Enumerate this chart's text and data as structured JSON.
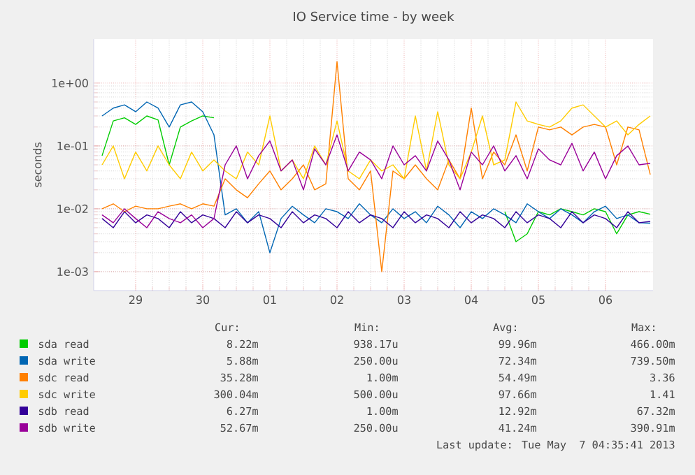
{
  "chart_data": {
    "type": "line",
    "title": "IO Service time - by week",
    "ylabel": "seconds",
    "log": "y",
    "grid": true,
    "legend": "bottom",
    "xlim": [
      "2013-04-28T09:00",
      "2013-05-06T17:00"
    ],
    "xticks": [
      {
        "value": "2013-04-29",
        "label": "29"
      },
      {
        "value": "2013-04-30",
        "label": "30"
      },
      {
        "value": "2013-05-01",
        "label": "01"
      },
      {
        "value": "2013-05-02",
        "label": "02"
      },
      {
        "value": "2013-05-03",
        "label": "03"
      },
      {
        "value": "2013-05-04",
        "label": "04"
      },
      {
        "value": "2013-05-05",
        "label": "05"
      },
      {
        "value": "2013-05-06",
        "label": "06"
      }
    ],
    "ylim": [
      0.0005,
      5
    ],
    "yticks": [
      {
        "value": 0.001,
        "label": "1e-03"
      },
      {
        "value": 0.01,
        "label": "1e-02"
      },
      {
        "value": 0.1,
        "label": "1e-01"
      },
      {
        "value": 1,
        "label": "1e+00"
      }
    ],
    "x": [
      "2013-04-28T12:00",
      "2013-04-28T16:00",
      "2013-04-28T20:00",
      "2013-04-29T00:00",
      "2013-04-29T04:00",
      "2013-04-29T08:00",
      "2013-04-29T12:00",
      "2013-04-29T16:00",
      "2013-04-29T20:00",
      "2013-04-30T00:00",
      "2013-04-30T04:00",
      "2013-04-30T08:00",
      "2013-04-30T12:00",
      "2013-04-30T16:00",
      "2013-04-30T20:00",
      "2013-05-01T00:00",
      "2013-05-01T04:00",
      "2013-05-01T08:00",
      "2013-05-01T12:00",
      "2013-05-01T16:00",
      "2013-05-01T20:00",
      "2013-05-02T00:00",
      "2013-05-02T04:00",
      "2013-05-02T08:00",
      "2013-05-02T12:00",
      "2013-05-02T16:00",
      "2013-05-02T20:00",
      "2013-05-03T00:00",
      "2013-05-03T04:00",
      "2013-05-03T08:00",
      "2013-05-03T12:00",
      "2013-05-03T16:00",
      "2013-05-03T20:00",
      "2013-05-04T00:00",
      "2013-05-04T04:00",
      "2013-05-04T08:00",
      "2013-05-04T12:00",
      "2013-05-04T16:00",
      "2013-05-04T20:00",
      "2013-05-05T00:00",
      "2013-05-05T04:00",
      "2013-05-05T08:00",
      "2013-05-05T12:00",
      "2013-05-05T16:00",
      "2013-05-05T20:00",
      "2013-05-06T00:00",
      "2013-05-06T04:00",
      "2013-05-06T08:00",
      "2013-05-06T12:00",
      "2013-05-06T16:00"
    ],
    "series": [
      {
        "name": "sda read",
        "color": "#00cc00",
        "values": [
          0.07,
          0.25,
          0.28,
          0.22,
          0.3,
          0.26,
          0.05,
          0.2,
          0.25,
          0.3,
          0.28,
          null,
          null,
          null,
          null,
          null,
          null,
          null,
          null,
          null,
          null,
          null,
          null,
          null,
          null,
          null,
          null,
          null,
          null,
          null,
          null,
          null,
          null,
          null,
          null,
          null,
          0.009,
          0.003,
          0.004,
          0.009,
          0.008,
          0.01,
          0.009,
          0.008,
          0.01,
          0.009,
          0.004,
          0.008,
          0.009,
          0.0082
        ]
      },
      {
        "name": "sda write",
        "color": "#0066b3",
        "values": [
          0.3,
          0.4,
          0.45,
          0.35,
          0.5,
          0.4,
          0.2,
          0.45,
          0.5,
          0.35,
          0.15,
          0.008,
          0.01,
          0.006,
          0.009,
          0.002,
          0.007,
          0.011,
          0.008,
          0.006,
          0.01,
          0.009,
          0.007,
          0.012,
          0.008,
          0.006,
          0.01,
          0.007,
          0.009,
          0.006,
          0.011,
          0.008,
          0.005,
          0.009,
          0.007,
          0.01,
          0.008,
          0.006,
          0.012,
          0.009,
          0.007,
          0.01,
          0.008,
          0.006,
          0.009,
          0.011,
          0.007,
          0.008,
          0.006,
          0.0059
        ]
      },
      {
        "name": "sdc read",
        "color": "#ff8000",
        "values": [
          0.01,
          0.012,
          0.009,
          0.011,
          0.01,
          0.01,
          0.011,
          0.012,
          0.01,
          0.012,
          0.011,
          0.03,
          0.02,
          0.015,
          0.025,
          0.04,
          0.02,
          0.03,
          0.05,
          0.02,
          0.025,
          2.2,
          0.03,
          0.02,
          0.04,
          0.001,
          0.04,
          0.03,
          0.05,
          0.03,
          0.02,
          0.06,
          0.03,
          0.4,
          0.03,
          0.08,
          0.05,
          0.15,
          0.04,
          0.2,
          0.18,
          0.2,
          0.15,
          0.2,
          0.22,
          0.2,
          0.05,
          0.2,
          0.18,
          0.035
        ]
      },
      {
        "name": "sdc write",
        "color": "#ffcc00",
        "values": [
          0.05,
          0.1,
          0.03,
          0.08,
          0.04,
          0.1,
          0.05,
          0.03,
          0.08,
          0.04,
          0.06,
          0.04,
          0.03,
          0.08,
          0.05,
          0.3,
          0.04,
          0.06,
          0.03,
          0.1,
          0.05,
          0.25,
          0.04,
          0.03,
          0.06,
          0.04,
          0.05,
          0.03,
          0.3,
          0.04,
          0.35,
          0.05,
          0.03,
          0.08,
          0.3,
          0.05,
          0.06,
          0.5,
          0.25,
          0.22,
          0.2,
          0.25,
          0.4,
          0.45,
          0.3,
          0.2,
          0.25,
          0.15,
          0.22,
          0.3
        ]
      },
      {
        "name": "sdb read",
        "color": "#330099",
        "values": [
          0.007,
          0.005,
          0.009,
          0.006,
          0.008,
          0.007,
          0.005,
          0.009,
          0.006,
          0.008,
          0.007,
          0.005,
          0.009,
          0.006,
          0.008,
          0.007,
          0.005,
          0.009,
          0.006,
          0.008,
          0.007,
          0.005,
          0.009,
          0.006,
          0.008,
          0.007,
          0.005,
          0.009,
          0.006,
          0.008,
          0.007,
          0.005,
          0.009,
          0.006,
          0.008,
          0.007,
          0.005,
          0.009,
          0.006,
          0.008,
          0.007,
          0.005,
          0.009,
          0.006,
          0.008,
          0.007,
          0.005,
          0.009,
          0.006,
          0.0063
        ]
      },
      {
        "name": "sdb write",
        "color": "#990099",
        "values": [
          0.008,
          0.006,
          0.01,
          0.007,
          0.005,
          0.009,
          0.007,
          0.006,
          0.008,
          0.005,
          0.007,
          0.05,
          0.1,
          0.03,
          0.07,
          0.12,
          0.04,
          0.06,
          0.02,
          0.09,
          0.05,
          0.15,
          0.04,
          0.08,
          0.06,
          0.03,
          0.1,
          0.05,
          0.07,
          0.04,
          0.12,
          0.06,
          0.02,
          0.08,
          0.05,
          0.1,
          0.04,
          0.07,
          0.03,
          0.09,
          0.06,
          0.05,
          0.11,
          0.04,
          0.08,
          0.03,
          0.07,
          0.1,
          0.05,
          0.053
        ]
      }
    ],
    "annotations": [
      "Cur:",
      "Min:",
      "Avg:",
      "Max:",
      "8.22m",
      "938.17u",
      "99.96m",
      "466.00m",
      "5.88m",
      "250.00u",
      "72.34m",
      "739.50m",
      "35.28m",
      "1.00m",
      "54.49m",
      "3.36",
      "300.04m",
      "500.00u",
      "97.66m",
      "1.41",
      "6.27m",
      "1.00m",
      "12.92m",
      "67.32m",
      "52.67m",
      "250.00u",
      "41.24m",
      "390.91m",
      "Last update: Tue May  7 04:35:41 2013"
    ]
  }
}
